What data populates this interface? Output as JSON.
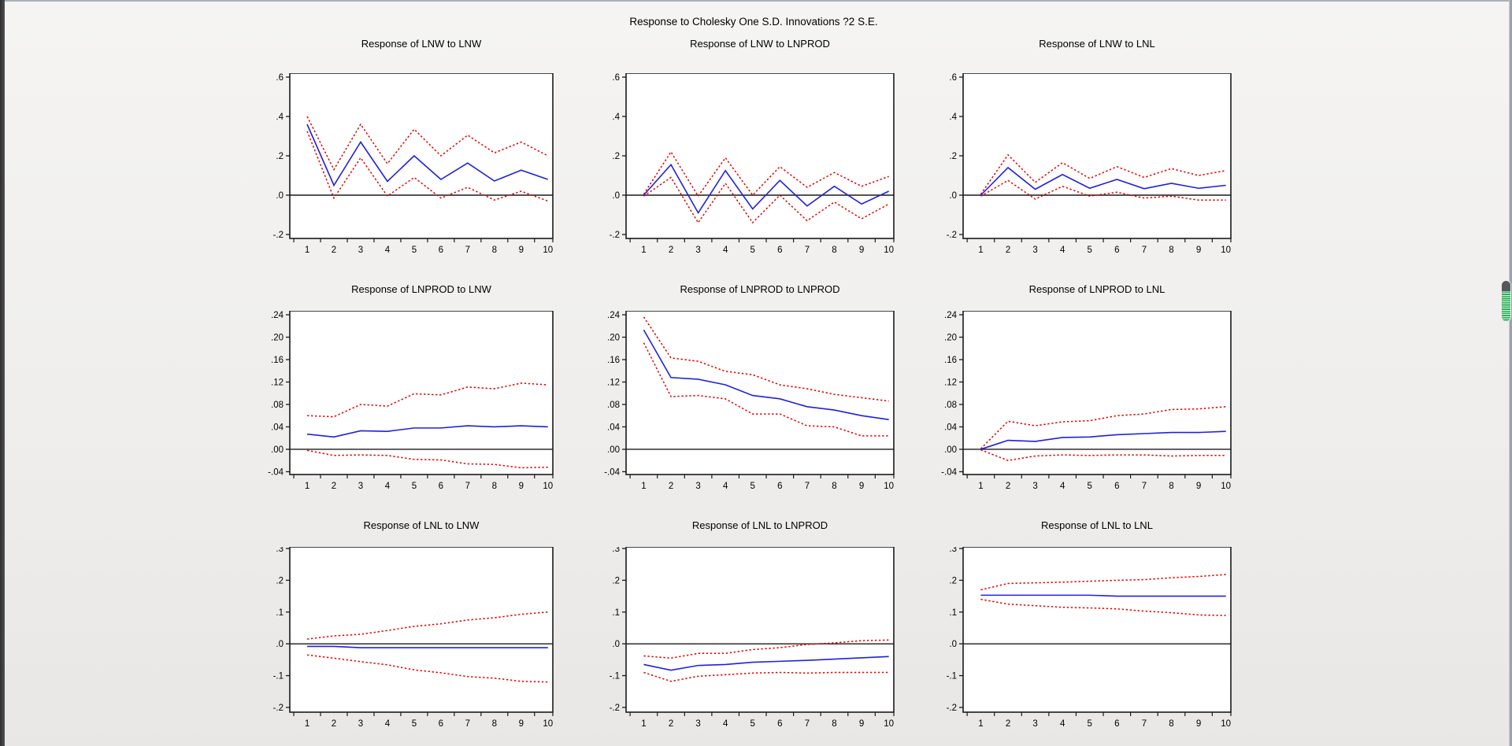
{
  "window": {
    "title": "Response to Cholesky One S.D. Innovations ?2 S.E."
  },
  "colors": {
    "response_line": "#2020dd",
    "band_line": "#e60000",
    "axis": "#1a1a1a",
    "plot_bg": "#ffffff",
    "scrollbar_green": "#2db157",
    "scrollbar_cap": "#54585d"
  },
  "chart_data": [
    {
      "type": "line",
      "title": "Response of LNW to LNW",
      "x": [
        1,
        2,
        3,
        4,
        5,
        6,
        7,
        8,
        9,
        10
      ],
      "series": [
        {
          "name": "response",
          "values": [
            0.36,
            0.05,
            0.27,
            0.07,
            0.2,
            0.08,
            0.163,
            0.072,
            0.127,
            0.08
          ]
        },
        {
          "name": "upper_2se",
          "values": [
            0.4,
            0.13,
            0.36,
            0.16,
            0.335,
            0.2,
            0.305,
            0.215,
            0.27,
            0.2
          ]
        },
        {
          "name": "lower_2se",
          "values": [
            0.325,
            -0.015,
            0.19,
            -0.005,
            0.09,
            -0.015,
            0.04,
            -0.025,
            0.02,
            -0.03
          ]
        }
      ],
      "ylim": [
        -0.22,
        0.62
      ],
      "ytick_labels": [
        ".6",
        ".4",
        ".2",
        ".0",
        "-.2"
      ],
      "ytick_values": [
        0.6,
        0.4,
        0.2,
        0.0,
        -0.2
      ],
      "grid": false,
      "legend": false
    },
    {
      "type": "line",
      "title": "Response of LNW to LNPROD",
      "x": [
        1,
        2,
        3,
        4,
        5,
        6,
        7,
        8,
        9,
        10
      ],
      "series": [
        {
          "name": "response",
          "values": [
            0.0,
            0.155,
            -0.09,
            0.125,
            -0.07,
            0.075,
            -0.055,
            0.045,
            -0.045,
            0.02
          ]
        },
        {
          "name": "upper_2se",
          "values": [
            0.005,
            0.22,
            -0.005,
            0.19,
            0.0,
            0.145,
            0.04,
            0.115,
            0.045,
            0.095
          ]
        },
        {
          "name": "lower_2se",
          "values": [
            -0.005,
            0.09,
            -0.14,
            0.06,
            -0.14,
            0.0,
            -0.13,
            -0.035,
            -0.12,
            -0.045
          ]
        }
      ],
      "ylim": [
        -0.22,
        0.62
      ],
      "ytick_labels": [
        ".6",
        ".4",
        ".2",
        ".0",
        "-.2"
      ],
      "ytick_values": [
        0.6,
        0.4,
        0.2,
        0.0,
        -0.2
      ],
      "grid": false,
      "legend": false
    },
    {
      "type": "line",
      "title": "Response of LNW to LNL",
      "x": [
        1,
        2,
        3,
        4,
        5,
        6,
        7,
        8,
        9,
        10
      ],
      "series": [
        {
          "name": "response",
          "values": [
            0.0,
            0.14,
            0.03,
            0.105,
            0.035,
            0.08,
            0.033,
            0.06,
            0.035,
            0.05
          ]
        },
        {
          "name": "upper_2se",
          "values": [
            0.005,
            0.205,
            0.065,
            0.165,
            0.085,
            0.145,
            0.09,
            0.135,
            0.1,
            0.125
          ]
        },
        {
          "name": "lower_2se",
          "values": [
            -0.005,
            0.075,
            -0.02,
            0.045,
            -0.005,
            0.015,
            -0.015,
            -0.005,
            -0.025,
            -0.025
          ]
        }
      ],
      "ylim": [
        -0.22,
        0.62
      ],
      "ytick_labels": [
        ".6",
        ".4",
        ".2",
        ".0",
        "-.2"
      ],
      "ytick_values": [
        0.6,
        0.4,
        0.2,
        0.0,
        -0.2
      ],
      "grid": false,
      "legend": false
    },
    {
      "type": "line",
      "title": "Response of LNPROD to LNW",
      "x": [
        1,
        2,
        3,
        4,
        5,
        6,
        7,
        8,
        9,
        10
      ],
      "series": [
        {
          "name": "response",
          "values": [
            0.027,
            0.022,
            0.033,
            0.032,
            0.038,
            0.038,
            0.042,
            0.04,
            0.042,
            0.04
          ]
        },
        {
          "name": "upper_2se",
          "values": [
            0.06,
            0.058,
            0.08,
            0.077,
            0.099,
            0.097,
            0.111,
            0.108,
            0.118,
            0.115
          ]
        },
        {
          "name": "lower_2se",
          "values": [
            -0.002,
            -0.011,
            -0.01,
            -0.011,
            -0.018,
            -0.019,
            -0.026,
            -0.027,
            -0.033,
            -0.032
          ]
        }
      ],
      "ylim": [
        -0.045,
        0.247
      ],
      "ytick_labels": [
        ".24",
        ".20",
        ".16",
        ".12",
        ".08",
        ".04",
        ".00",
        "-.04"
      ],
      "ytick_values": [
        0.24,
        0.2,
        0.16,
        0.12,
        0.08,
        0.04,
        0.0,
        -0.04
      ],
      "grid": false,
      "legend": false
    },
    {
      "type": "line",
      "title": "Response of LNPROD to LNPROD",
      "x": [
        1,
        2,
        3,
        4,
        5,
        6,
        7,
        8,
        9,
        10
      ],
      "series": [
        {
          "name": "response",
          "values": [
            0.213,
            0.128,
            0.125,
            0.115,
            0.096,
            0.09,
            0.076,
            0.07,
            0.06,
            0.053
          ]
        },
        {
          "name": "upper_2se",
          "values": [
            0.236,
            0.163,
            0.157,
            0.139,
            0.133,
            0.115,
            0.108,
            0.098,
            0.092,
            0.086
          ]
        },
        {
          "name": "lower_2se",
          "values": [
            0.19,
            0.094,
            0.096,
            0.09,
            0.063,
            0.063,
            0.042,
            0.04,
            0.024,
            0.024
          ]
        }
      ],
      "ylim": [
        -0.045,
        0.247
      ],
      "ytick_labels": [
        ".24",
        ".20",
        ".16",
        ".12",
        ".08",
        ".04",
        ".00",
        "-.04"
      ],
      "ytick_values": [
        0.24,
        0.2,
        0.16,
        0.12,
        0.08,
        0.04,
        0.0,
        -0.04
      ],
      "grid": false,
      "legend": false
    },
    {
      "type": "line",
      "title": "Response of LNPROD to LNL",
      "x": [
        1,
        2,
        3,
        4,
        5,
        6,
        7,
        8,
        9,
        10
      ],
      "series": [
        {
          "name": "response",
          "values": [
            0.0,
            0.016,
            0.014,
            0.021,
            0.022,
            0.026,
            0.028,
            0.03,
            0.03,
            0.032
          ]
        },
        {
          "name": "upper_2se",
          "values": [
            0.001,
            0.05,
            0.042,
            0.049,
            0.051,
            0.06,
            0.063,
            0.071,
            0.072,
            0.076
          ]
        },
        {
          "name": "lower_2se",
          "values": [
            -0.001,
            -0.02,
            -0.012,
            -0.01,
            -0.011,
            -0.01,
            -0.01,
            -0.012,
            -0.011,
            -0.011
          ]
        }
      ],
      "ylim": [
        -0.045,
        0.247
      ],
      "ytick_labels": [
        ".24",
        ".20",
        ".16",
        ".12",
        ".08",
        ".04",
        ".00",
        "-.04"
      ],
      "ytick_values": [
        0.24,
        0.2,
        0.16,
        0.12,
        0.08,
        0.04,
        0.0,
        -0.04
      ],
      "grid": false,
      "legend": false
    },
    {
      "type": "line",
      "title": "Response of LNL to LNW",
      "x": [
        1,
        2,
        3,
        4,
        5,
        6,
        7,
        8,
        9,
        10
      ],
      "series": [
        {
          "name": "response",
          "values": [
            -0.008,
            -0.008,
            -0.012,
            -0.012,
            -0.012,
            -0.012,
            -0.012,
            -0.012,
            -0.012,
            -0.012
          ]
        },
        {
          "name": "upper_2se",
          "values": [
            0.015,
            0.025,
            0.03,
            0.042,
            0.055,
            0.063,
            0.075,
            0.082,
            0.093,
            0.1
          ]
        },
        {
          "name": "lower_2se",
          "values": [
            -0.035,
            -0.045,
            -0.056,
            -0.066,
            -0.082,
            -0.091,
            -0.103,
            -0.108,
            -0.118,
            -0.12
          ]
        }
      ],
      "ylim": [
        -0.215,
        0.305
      ],
      "ytick_labels": [
        ".3",
        ".2",
        ".1",
        ".0",
        "-.1",
        "-.2"
      ],
      "ytick_values": [
        0.3,
        0.2,
        0.1,
        0.0,
        -0.1,
        -0.2
      ],
      "grid": false,
      "legend": false
    },
    {
      "type": "line",
      "title": "Response of LNL to LNPROD",
      "x": [
        1,
        2,
        3,
        4,
        5,
        6,
        7,
        8,
        9,
        10
      ],
      "series": [
        {
          "name": "response",
          "values": [
            -0.065,
            -0.083,
            -0.068,
            -0.065,
            -0.058,
            -0.055,
            -0.052,
            -0.048,
            -0.044,
            -0.04
          ]
        },
        {
          "name": "upper_2se",
          "values": [
            -0.038,
            -0.045,
            -0.03,
            -0.03,
            -0.018,
            -0.012,
            -0.002,
            0.003,
            0.01,
            0.012
          ]
        },
        {
          "name": "lower_2se",
          "values": [
            -0.09,
            -0.118,
            -0.102,
            -0.097,
            -0.092,
            -0.09,
            -0.092,
            -0.09,
            -0.09,
            -0.09
          ]
        }
      ],
      "ylim": [
        -0.215,
        0.305
      ],
      "ytick_labels": [
        ".3",
        ".2",
        ".1",
        ".0",
        "-.1",
        "-.2"
      ],
      "ytick_values": [
        0.3,
        0.2,
        0.1,
        0.0,
        -0.1,
        -0.2
      ],
      "grid": false,
      "legend": false
    },
    {
      "type": "line",
      "title": "Response of LNL to LNL",
      "x": [
        1,
        2,
        3,
        4,
        5,
        6,
        7,
        8,
        9,
        10
      ],
      "series": [
        {
          "name": "response",
          "values": [
            0.153,
            0.153,
            0.153,
            0.153,
            0.153,
            0.15,
            0.15,
            0.15,
            0.15,
            0.15
          ]
        },
        {
          "name": "upper_2se",
          "values": [
            0.17,
            0.19,
            0.192,
            0.194,
            0.197,
            0.2,
            0.202,
            0.208,
            0.212,
            0.218
          ]
        },
        {
          "name": "lower_2se",
          "values": [
            0.14,
            0.125,
            0.12,
            0.115,
            0.113,
            0.11,
            0.103,
            0.098,
            0.091,
            0.089
          ]
        }
      ],
      "ylim": [
        -0.215,
        0.305
      ],
      "ytick_labels": [
        ".3",
        ".2",
        ".1",
        ".0",
        "-.1",
        "-.2"
      ],
      "ytick_values": [
        0.3,
        0.2,
        0.1,
        0.0,
        -0.1,
        -0.2
      ],
      "grid": false,
      "legend": false
    }
  ]
}
